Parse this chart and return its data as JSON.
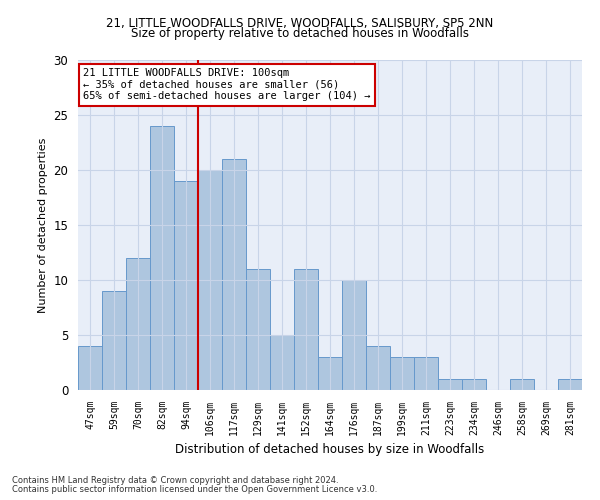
{
  "title_line1": "21, LITTLE WOODFALLS DRIVE, WOODFALLS, SALISBURY, SP5 2NN",
  "title_line2": "Size of property relative to detached houses in Woodfalls",
  "xlabel": "Distribution of detached houses by size in Woodfalls",
  "ylabel": "Number of detached properties",
  "categories": [
    "47sqm",
    "59sqm",
    "70sqm",
    "82sqm",
    "94sqm",
    "106sqm",
    "117sqm",
    "129sqm",
    "141sqm",
    "152sqm",
    "164sqm",
    "176sqm",
    "187sqm",
    "199sqm",
    "211sqm",
    "223sqm",
    "234sqm",
    "246sqm",
    "258sqm",
    "269sqm",
    "281sqm"
  ],
  "values": [
    4,
    9,
    12,
    24,
    19,
    20,
    21,
    11,
    5,
    11,
    3,
    10,
    4,
    3,
    3,
    1,
    1,
    0,
    1,
    0,
    1
  ],
  "bar_color": "#aec6df",
  "bar_edge_color": "#6699cc",
  "bar_width": 1.0,
  "property_line_x": 4.5,
  "ylim": [
    0,
    30
  ],
  "yticks": [
    0,
    5,
    10,
    15,
    20,
    25,
    30
  ],
  "annotation_text": "21 LITTLE WOODFALLS DRIVE: 100sqm\n← 35% of detached houses are smaller (56)\n65% of semi-detached houses are larger (104) →",
  "annotation_box_color": "#ffffff",
  "annotation_box_edge": "#cc0000",
  "red_line_color": "#cc0000",
  "footer_line1": "Contains HM Land Registry data © Crown copyright and database right 2024.",
  "footer_line2": "Contains public sector information licensed under the Open Government Licence v3.0.",
  "grid_color": "#c8d4e8",
  "background_color": "#e8eef8"
}
